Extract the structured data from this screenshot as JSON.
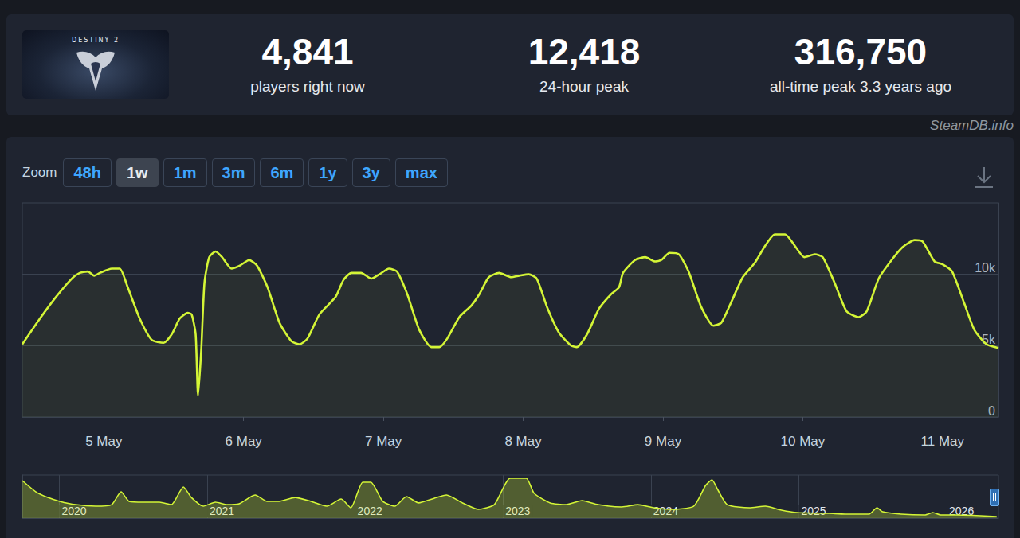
{
  "header": {
    "logo_text": "DESTINY 2",
    "stats": [
      {
        "value": "4,841",
        "label": "players right now"
      },
      {
        "value": "12,418",
        "label": "24-hour peak"
      },
      {
        "value": "316,750",
        "label": "all-time peak 3.3 years ago"
      }
    ]
  },
  "source": "SteamDB.info",
  "zoom": {
    "label": "Zoom",
    "options": [
      "48h",
      "1w",
      "1m",
      "3m",
      "6m",
      "1y",
      "3y",
      "max"
    ],
    "selected": "1w"
  },
  "chart_data": [
    {
      "type": "area",
      "color": "#d4f536",
      "x": [
        4.417,
        4.543,
        4.657,
        4.771,
        4.828,
        4.886,
        4.931,
        4.971,
        5.057,
        5.114,
        5.171,
        5.257,
        5.343,
        5.428,
        5.486,
        5.543,
        5.6,
        5.628,
        5.657,
        5.674,
        5.697,
        5.72,
        5.754,
        5.8,
        5.846,
        5.914,
        5.971,
        6.04,
        6.097,
        6.171,
        6.257,
        6.343,
        6.4,
        6.457,
        6.543,
        6.657,
        6.714,
        6.771,
        6.84,
        6.914,
        6.971,
        7.04,
        7.097,
        7.171,
        7.257,
        7.343,
        7.4,
        7.457,
        7.543,
        7.628,
        7.686,
        7.754,
        7.828,
        7.914,
        7.971,
        8.04,
        8.097,
        8.171,
        8.257,
        8.343,
        8.383,
        8.457,
        8.543,
        8.628,
        8.686,
        8.714,
        8.8,
        8.874,
        8.943,
        8.988,
        9.046,
        9.114,
        9.183,
        9.274,
        9.36,
        9.417,
        9.486,
        9.571,
        9.657,
        9.731,
        9.8,
        9.874,
        9.943,
        10.011,
        10.086,
        10.143,
        10.228,
        10.314,
        10.4,
        10.457,
        10.543,
        10.628,
        10.714,
        10.8,
        10.857,
        10.943,
        11.0,
        11.068,
        11.154,
        11.228,
        11.314,
        11.4
      ],
      "values": [
        5100,
        6900,
        8400,
        9700,
        10100,
        10200,
        9900,
        10100,
        10400,
        10400,
        9100,
        6900,
        5400,
        5200,
        5800,
        6900,
        7300,
        7200,
        5800,
        1500,
        4700,
        9400,
        11200,
        11600,
        11200,
        10400,
        10600,
        11000,
        10600,
        9100,
        6600,
        5300,
        5100,
        5500,
        7200,
        8400,
        9600,
        10100,
        10100,
        9700,
        10000,
        10400,
        10200,
        8600,
        6100,
        4900,
        4900,
        5500,
        7000,
        7800,
        8600,
        9800,
        10100,
        9800,
        9900,
        10000,
        9700,
        7700,
        5900,
        5000,
        4900,
        5800,
        7600,
        8600,
        9100,
        10100,
        11000,
        11200,
        10900,
        11000,
        11500,
        11400,
        10200,
        7700,
        6400,
        6600,
        8000,
        9800,
        10800,
        12000,
        12800,
        12800,
        12000,
        11200,
        11400,
        11200,
        9400,
        7400,
        7000,
        7400,
        9700,
        10900,
        11900,
        12400,
        12300,
        10900,
        10700,
        10200,
        8000,
        6100,
        5100,
        4841
      ],
      "xlim": [
        4.417,
        11.4
      ],
      "xticks": [
        {
          "value": 5,
          "label": "5 May"
        },
        {
          "value": 6,
          "label": "6 May"
        },
        {
          "value": 7,
          "label": "7 May"
        },
        {
          "value": 8,
          "label": "8 May"
        },
        {
          "value": 9,
          "label": "9 May"
        },
        {
          "value": 10,
          "label": "10 May"
        },
        {
          "value": 11,
          "label": "11 May"
        }
      ],
      "ylim": [
        0,
        15000
      ],
      "yticks": [
        0,
        {
          "value": 5000,
          "label": "5k"
        },
        {
          "value": 10000,
          "label": "10k"
        }
      ],
      "grid": "y"
    },
    {
      "type": "area",
      "color": "#d4f536",
      "x": [
        2019.75,
        2019.842,
        2019.922,
        2020.003,
        2020.111,
        2020.246,
        2020.354,
        2020.418,
        2020.472,
        2020.569,
        2020.677,
        2020.758,
        2020.839,
        2020.893,
        2020.974,
        2021.055,
        2021.135,
        2021.216,
        2021.324,
        2021.405,
        2021.486,
        2021.594,
        2021.701,
        2021.809,
        2021.906,
        2021.971,
        2022.052,
        2022.106,
        2022.187,
        2022.268,
        2022.348,
        2022.429,
        2022.537,
        2022.618,
        2022.726,
        2022.834,
        2022.941,
        2023.049,
        2023.157,
        2023.211,
        2023.319,
        2023.427,
        2023.534,
        2023.642,
        2023.804,
        2023.912,
        2024.02,
        2024.127,
        2024.289,
        2024.37,
        2024.413,
        2024.451,
        2024.516,
        2024.666,
        2024.774,
        2024.882,
        2024.99,
        2025.206,
        2025.313,
        2025.475,
        2025.529,
        2025.567,
        2025.691,
        2025.852,
        2025.906,
        2025.96,
        2026.068,
        2026.23,
        2026.338
      ],
      "values": [
        261000,
        183000,
        144000,
        117000,
        94000,
        83000,
        94000,
        183000,
        117000,
        111000,
        111000,
        94000,
        217000,
        144000,
        83000,
        111000,
        94000,
        100000,
        161000,
        117000,
        117000,
        144000,
        117000,
        83000,
        133000,
        72000,
        250000,
        250000,
        117000,
        83000,
        150000,
        106000,
        139000,
        161000,
        106000,
        61000,
        94000,
        278000,
        278000,
        172000,
        106000,
        94000,
        122000,
        94000,
        78000,
        94000,
        72000,
        61000,
        83000,
        228000,
        267000,
        200000,
        94000,
        72000,
        83000,
        56000,
        39000,
        33000,
        28000,
        28000,
        72000,
        44000,
        28000,
        22000,
        39000,
        22000,
        22000,
        17000,
        11000
      ],
      "xlim": [
        2019.75,
        2026.35
      ],
      "xticks": [
        2020,
        2021,
        2022,
        2023,
        2024,
        2025,
        2026
      ],
      "ylim": [
        0,
        300000
      ],
      "grid": "x",
      "tick_labels": "x"
    }
  ]
}
